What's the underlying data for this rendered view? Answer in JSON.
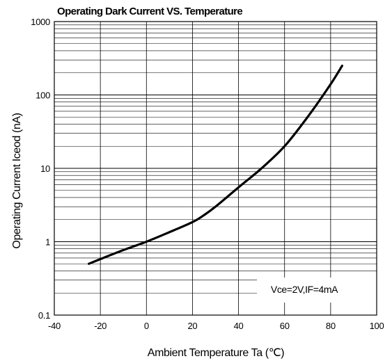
{
  "chart_data": {
    "type": "line",
    "title": "Operating Dark Current VS. Temperature",
    "xlabel": "Ambient Temperature Ta (℃)",
    "ylabel": "Operating Current Iceod (nA)",
    "xlim": [
      -40,
      100
    ],
    "ylim": [
      0.1,
      1000
    ],
    "yscale": "log",
    "x_ticks": [
      -40,
      -20,
      0,
      20,
      40,
      60,
      80,
      100
    ],
    "x_tick_labels": [
      "-40",
      "-20",
      "0",
      "20",
      "40",
      "60",
      "80",
      "100"
    ],
    "y_ticks": [
      0.1,
      1,
      10,
      100,
      1000
    ],
    "y_tick_labels": [
      "0.1",
      "1",
      "10",
      "100",
      "1000"
    ],
    "grid": true,
    "annotation": "Vce=2V,IF=4mA",
    "series": [
      {
        "x": [
          -25,
          -20,
          -10,
          0,
          10,
          20,
          25,
          30,
          40,
          50,
          60,
          70,
          80,
          85
        ],
        "y": [
          0.5,
          0.58,
          0.77,
          1.0,
          1.35,
          1.85,
          2.3,
          3.0,
          5.5,
          10,
          20,
          50,
          140,
          250
        ]
      }
    ]
  }
}
